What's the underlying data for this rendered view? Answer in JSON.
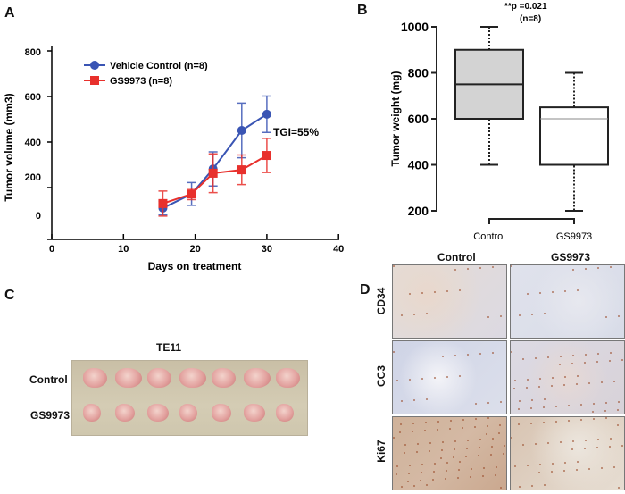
{
  "panels": {
    "a": "A",
    "b": "B",
    "c": "C",
    "d": "D"
  },
  "chart_data": [
    {
      "type": "line",
      "panel": "A",
      "title": "",
      "xlabel": "Days on treatment",
      "ylabel": "Tumor volume (mm3)",
      "xlim": [
        0,
        40
      ],
      "ylim": [
        0,
        800
      ],
      "xticks": [
        "0",
        "10",
        "20",
        "30",
        "40"
      ],
      "yticks": [
        "800",
        "600",
        "400",
        "200",
        "0"
      ],
      "annotation": "TGI=55%",
      "legend_position": "top-left",
      "series": [
        {
          "name": "Vehicle Control (n=8)",
          "color": "#3a55b4",
          "marker": "circle",
          "x": [
            15.5,
            19.5,
            22.5,
            26.5,
            30
          ],
          "y": [
            110,
            172,
            282,
            451,
            522
          ],
          "err": [
            30,
            50,
            75,
            120,
            80
          ]
        },
        {
          "name": "GS9973 (n=8)",
          "color": "#e8302c",
          "marker": "square",
          "x": [
            15.5,
            19.5,
            22.5,
            26.5,
            30
          ],
          "y": [
            130,
            172,
            263,
            278,
            341
          ],
          "err": [
            55,
            25,
            85,
            65,
            75
          ]
        }
      ]
    },
    {
      "type": "box",
      "panel": "B",
      "ylabel": "Tumor weight (mg)",
      "ylim": [
        200,
        1000
      ],
      "yticks": [
        "1000",
        "800",
        "600",
        "400",
        "200"
      ],
      "categories": [
        "Control",
        "GS9973"
      ],
      "boxes": [
        {
          "min": 400,
          "q1": 600,
          "median": 750,
          "q3": 900,
          "max": 1000,
          "fill": "#d3d3d3"
        },
        {
          "min": 200,
          "q1": 400,
          "median": 600,
          "q3": 650,
          "max": 800,
          "fill": "#ffffff"
        }
      ],
      "annotation": "**p =0.021",
      "annotation2": "(n=8)"
    }
  ],
  "panel_c": {
    "title": "TE11",
    "rows": [
      "Control",
      "GS9973"
    ],
    "count_per_row": 7
  },
  "panel_d": {
    "columns": [
      "Control",
      "GS9973"
    ],
    "rows": [
      "CD34",
      "CC3",
      "Ki67"
    ]
  }
}
